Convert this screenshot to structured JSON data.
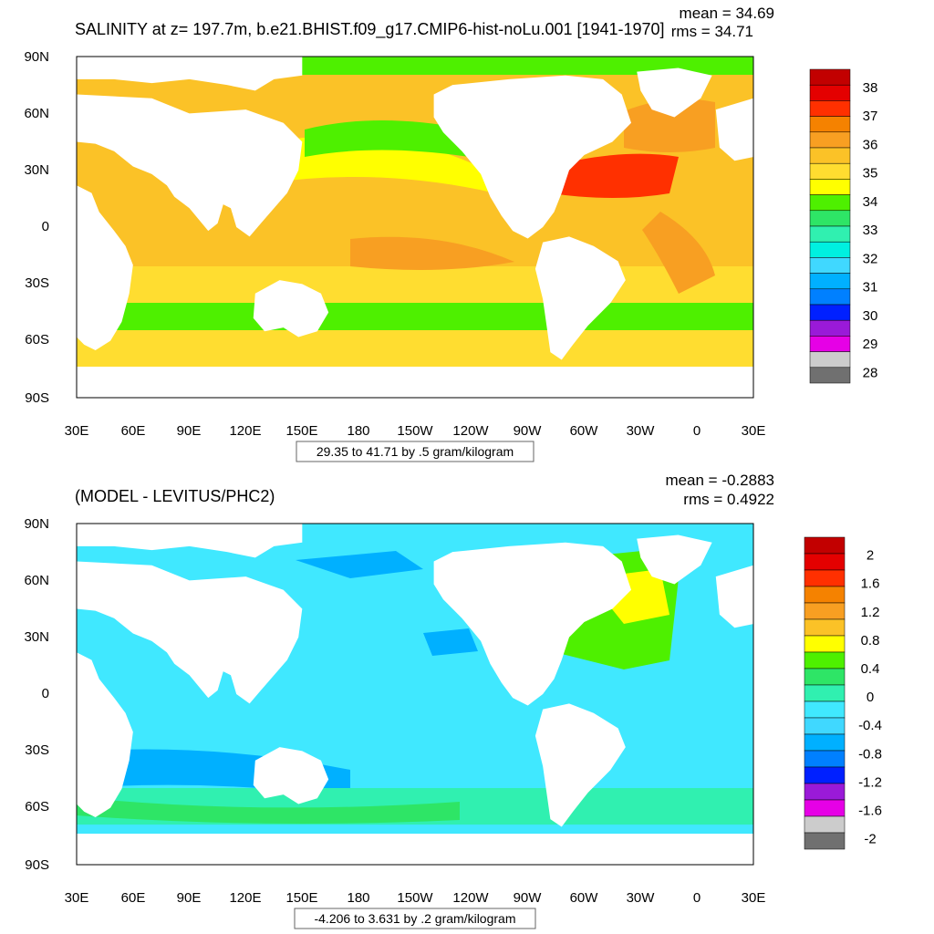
{
  "panels": [
    {
      "id": "salinity",
      "title": "SALINITY at z= 197.7m, b.e21.BHIST.f09_g17.CMIP6-hist-noLu.001 [1941-1970]",
      "mean_text": "mean = 34.69",
      "rms_text": "rms = 34.71",
      "range_text": "29.35 to 41.71 by .5 gram/kilogram",
      "lat_labels": [
        "90N",
        "60N",
        "30N",
        "0",
        "30S",
        "60S",
        "90S"
      ],
      "lon_labels": [
        "30E",
        "60E",
        "90E",
        "120E",
        "150E",
        "180",
        "150W",
        "120W",
        "90W",
        "60W",
        "30W",
        "0",
        "30E"
      ],
      "colorbar": {
        "colors": [
          "#c20000",
          "#e40000",
          "#ff3000",
          "#f58200",
          "#f89f22",
          "#fbc227",
          "#ffdd30",
          "#ffff00",
          "#4ef000",
          "#2ee566",
          "#30f0b0",
          "#00f0e0",
          "#40d8ff",
          "#00b0ff",
          "#0080ff",
          "#0020ff",
          "#9a1ad8",
          "#e600e6",
          "#cccccc",
          "#707070"
        ],
        "labels": [
          "38",
          "37",
          "36",
          "35",
          "34",
          "33",
          "32",
          "31",
          "30",
          "29",
          "28"
        ]
      }
    },
    {
      "id": "difference",
      "title": "(MODEL - LEVITUS/PHC2)",
      "mean_text": "mean = -0.2883",
      "rms_text": "rms = 0.4922",
      "range_text": "-4.206 to 3.631 by .2 gram/kilogram",
      "lat_labels": [
        "90N",
        "60N",
        "30N",
        "0",
        "30S",
        "60S",
        "90S"
      ],
      "lon_labels": [
        "30E",
        "60E",
        "90E",
        "120E",
        "150E",
        "180",
        "150W",
        "120W",
        "90W",
        "60W",
        "30W",
        "0",
        "30E"
      ],
      "colorbar": {
        "colors": [
          "#c20000",
          "#e40000",
          "#ff3000",
          "#f58200",
          "#f89f22",
          "#fbc227",
          "#ffff00",
          "#4ef000",
          "#2ee566",
          "#30f0b0",
          "#40e8ff",
          "#40d8ff",
          "#00b0ff",
          "#0080ff",
          "#0020ff",
          "#9a1ad8",
          "#e600e6",
          "#cccccc",
          "#707070"
        ],
        "labels": [
          "2",
          "1.6",
          "1.2",
          "0.8",
          "0.4",
          "0",
          "-0.4",
          "-0.8",
          "-1.2",
          "-1.6",
          "-2"
        ]
      }
    }
  ],
  "colors": {
    "land": "#ffffff",
    "frame": "#000000"
  }
}
